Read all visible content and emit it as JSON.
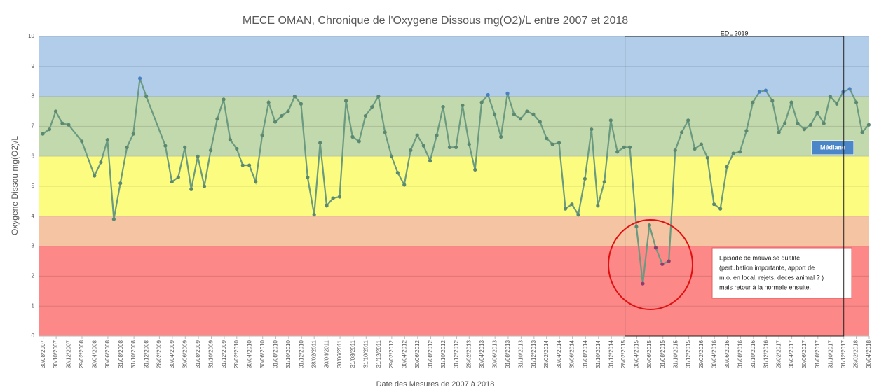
{
  "chart_data": {
    "type": "line",
    "title": "MECE OMAN, Chronique de l'Oxygene Dissous mg(O2)/L entre 2007 et 2018",
    "y_label": "Oxygene Dissou mg(O2)/L",
    "x_label": "Date des Mesures de 2007 à 2018",
    "color": "#6a9a80",
    "ylim": [
      0,
      10
    ],
    "yticks": [
      0,
      1,
      2,
      3,
      4,
      5,
      6,
      7,
      8,
      9,
      10
    ],
    "grid": true,
    "xlim": [
      "2007-08-08",
      "2018-04-30"
    ],
    "bands": [
      {
        "from": 8,
        "to": 10,
        "color": "#b1cde9"
      },
      {
        "from": 6,
        "to": 8,
        "color": "#c2d8ad"
      },
      {
        "from": 4,
        "to": 6,
        "color": "#fcfc80"
      },
      {
        "from": 3,
        "to": 4,
        "color": "#f5c4a3"
      },
      {
        "from": 0,
        "to": 3,
        "color": "#fc8888"
      }
    ],
    "highlight_box": {
      "label": "EDL 2019",
      "x": [
        "2015-03-05",
        "2017-12-31"
      ]
    },
    "legend_label": "Médiane",
    "annotation": [
      "Episode de mauvaise qualité",
      "(pertubation importante, apport de",
      "m.o. en local, rejets, deces animal ? )",
      "mais retour à la normale ensuite."
    ],
    "xticks": [
      {
        "value": "2007-08-30",
        "label": "30/08/2007"
      },
      {
        "value": "2007-10-30",
        "label": "30/10/2007"
      },
      {
        "value": "2007-12-30",
        "label": "30/12/2007"
      },
      {
        "value": "2008-02-29",
        "label": "29/02/2008"
      },
      {
        "value": "2008-04-30",
        "label": "30/04/2008"
      },
      {
        "value": "2008-06-30",
        "label": "30/06/2008"
      },
      {
        "value": "2008-08-31",
        "label": "31/08/2008"
      },
      {
        "value": "2008-10-31",
        "label": "31/10/2008"
      },
      {
        "value": "2008-12-31",
        "label": "31/12/2008"
      },
      {
        "value": "2009-02-28",
        "label": "28/02/2009"
      },
      {
        "value": "2009-04-30",
        "label": "30/04/2009"
      },
      {
        "value": "2009-06-30",
        "label": "30/06/2009"
      },
      {
        "value": "2009-08-31",
        "label": "31/08/2009"
      },
      {
        "value": "2009-10-31",
        "label": "31/10/2009"
      },
      {
        "value": "2009-12-31",
        "label": "31/12/2009"
      },
      {
        "value": "2010-02-28",
        "label": "28/02/2010"
      },
      {
        "value": "2010-04-30",
        "label": "30/04/2010"
      },
      {
        "value": "2010-06-30",
        "label": "30/06/2010"
      },
      {
        "value": "2010-08-31",
        "label": "31/08/2010"
      },
      {
        "value": "2010-10-31",
        "label": "31/10/2010"
      },
      {
        "value": "2010-12-31",
        "label": "31/12/2010"
      },
      {
        "value": "2011-02-28",
        "label": "28/02/2011"
      },
      {
        "value": "2011-04-30",
        "label": "30/04/2011"
      },
      {
        "value": "2011-06-30",
        "label": "30/06/2011"
      },
      {
        "value": "2011-08-31",
        "label": "31/08/2011"
      },
      {
        "value": "2011-10-31",
        "label": "31/10/2011"
      },
      {
        "value": "2011-12-31",
        "label": "31/12/2011"
      },
      {
        "value": "2012-02-29",
        "label": "29/02/2012"
      },
      {
        "value": "2012-04-30",
        "label": "30/04/2012"
      },
      {
        "value": "2012-06-30",
        "label": "30/06/2012"
      },
      {
        "value": "2012-08-31",
        "label": "31/08/2012"
      },
      {
        "value": "2012-10-31",
        "label": "31/10/2012"
      },
      {
        "value": "2012-12-31",
        "label": "31/12/2012"
      },
      {
        "value": "2013-02-28",
        "label": "28/02/2013"
      },
      {
        "value": "2013-04-30",
        "label": "30/04/2013"
      },
      {
        "value": "2013-06-30",
        "label": "30/06/2013"
      },
      {
        "value": "2013-08-31",
        "label": "31/08/2013"
      },
      {
        "value": "2013-10-31",
        "label": "31/10/2013"
      },
      {
        "value": "2013-12-31",
        "label": "31/12/2013"
      },
      {
        "value": "2014-02-28",
        "label": "28/02/2014"
      },
      {
        "value": "2014-04-30",
        "label": "30/04/2014"
      },
      {
        "value": "2014-06-30",
        "label": "30/06/2014"
      },
      {
        "value": "2014-08-31",
        "label": "31/08/2014"
      },
      {
        "value": "2014-10-31",
        "label": "31/10/2014"
      },
      {
        "value": "2014-12-31",
        "label": "31/12/2014"
      },
      {
        "value": "2015-02-28",
        "label": "28/02/2015"
      },
      {
        "value": "2015-04-30",
        "label": "30/04/2015"
      },
      {
        "value": "2015-06-30",
        "label": "30/06/2015"
      },
      {
        "value": "2015-08-31",
        "label": "31/08/2015"
      },
      {
        "value": "2015-10-31",
        "label": "31/10/2015"
      },
      {
        "value": "2015-12-31",
        "label": "31/12/2015"
      },
      {
        "value": "2016-02-29",
        "label": "29/02/2016"
      },
      {
        "value": "2016-04-30",
        "label": "30/04/2016"
      },
      {
        "value": "2016-06-30",
        "label": "30/06/2016"
      },
      {
        "value": "2016-08-31",
        "label": "31/08/2016"
      },
      {
        "value": "2016-10-31",
        "label": "31/10/2016"
      },
      {
        "value": "2016-12-31",
        "label": "31/12/2016"
      },
      {
        "value": "2017-02-28",
        "label": "28/02/2017"
      },
      {
        "value": "2017-04-30",
        "label": "30/04/2017"
      },
      {
        "value": "2017-06-30",
        "label": "30/06/2017"
      },
      {
        "value": "2017-08-31",
        "label": "31/08/2017"
      },
      {
        "value": "2017-10-31",
        "label": "31/10/2017"
      },
      {
        "value": "2017-12-31",
        "label": "31/12/2017"
      },
      {
        "value": "2018-02-28",
        "label": "28/02/2018"
      },
      {
        "value": "2018-04-30",
        "label": "30/04/2018"
      }
    ],
    "x": [
      "2007-08-28",
      "2007-09-28",
      "2007-10-28",
      "2007-11-28",
      "2007-12-28",
      "2008-02-28",
      "2008-04-28",
      "2008-05-28",
      "2008-06-28",
      "2008-07-28",
      "2008-08-28",
      "2008-09-28",
      "2008-10-28",
      "2008-11-28",
      "2008-12-28",
      "2009-03-28",
      "2009-04-28",
      "2009-05-28",
      "2009-06-28",
      "2009-07-28",
      "2009-08-28",
      "2009-09-28",
      "2009-10-28",
      "2009-11-28",
      "2009-12-28",
      "2010-01-28",
      "2010-02-28",
      "2010-03-28",
      "2010-04-28",
      "2010-05-28",
      "2010-06-28",
      "2010-07-28",
      "2010-08-28",
      "2010-09-28",
      "2010-10-28",
      "2010-11-28",
      "2010-12-28",
      "2011-01-28",
      "2011-02-28",
      "2011-03-28",
      "2011-04-28",
      "2011-05-28",
      "2011-06-28",
      "2011-07-28",
      "2011-08-28",
      "2011-09-28",
      "2011-10-28",
      "2011-11-28",
      "2011-12-28",
      "2012-01-28",
      "2012-02-28",
      "2012-03-28",
      "2012-04-28",
      "2012-05-28",
      "2012-06-28",
      "2012-07-28",
      "2012-08-28",
      "2012-09-28",
      "2012-10-28",
      "2012-11-28",
      "2012-12-28",
      "2013-01-28",
      "2013-02-28",
      "2013-03-28",
      "2013-04-28",
      "2013-05-28",
      "2013-06-28",
      "2013-07-28",
      "2013-08-28",
      "2013-09-28",
      "2013-10-28",
      "2013-11-28",
      "2013-12-28",
      "2014-01-28",
      "2014-02-28",
      "2014-03-28",
      "2014-04-28",
      "2014-05-28",
      "2014-06-28",
      "2014-07-28",
      "2014-08-28",
      "2014-09-28",
      "2014-10-28",
      "2014-11-28",
      "2014-12-28",
      "2015-01-28",
      "2015-02-28",
      "2015-03-28",
      "2015-04-28",
      "2015-05-28",
      "2015-06-28",
      "2015-07-28",
      "2015-08-28",
      "2015-09-28",
      "2015-10-28",
      "2015-11-28",
      "2015-12-28",
      "2016-01-28",
      "2016-02-28",
      "2016-03-28",
      "2016-04-28",
      "2016-05-28",
      "2016-06-28",
      "2016-07-28",
      "2016-08-28",
      "2016-09-28",
      "2016-10-28",
      "2016-11-28",
      "2016-12-28",
      "2017-01-28",
      "2017-02-28",
      "2017-03-28",
      "2017-04-28",
      "2017-05-28",
      "2017-06-28",
      "2017-07-28",
      "2017-08-28",
      "2017-09-28",
      "2017-10-28",
      "2017-11-28",
      "2017-12-28",
      "2018-01-28",
      "2018-02-28",
      "2018-03-28",
      "2018-04-28"
    ],
    "values": [
      6.75,
      6.9,
      7.5,
      7.1,
      7.05,
      6.5,
      5.35,
      5.8,
      6.55,
      3.9,
      5.1,
      6.3,
      6.75,
      8.6,
      8.0,
      6.35,
      5.15,
      5.3,
      6.3,
      4.9,
      6.0,
      5.0,
      6.2,
      7.25,
      7.9,
      6.55,
      6.25,
      5.7,
      5.7,
      5.15,
      6.7,
      7.8,
      7.15,
      7.35,
      7.5,
      8.0,
      7.75,
      5.3,
      4.05,
      6.45,
      4.35,
      4.6,
      4.65,
      7.85,
      6.65,
      6.5,
      7.35,
      7.65,
      8.0,
      6.8,
      6.0,
      5.45,
      5.05,
      6.2,
      6.7,
      6.35,
      5.85,
      6.7,
      7.65,
      6.3,
      6.3,
      7.7,
      6.4,
      5.55,
      7.8,
      8.05,
      7.4,
      6.65,
      8.1,
      7.4,
      7.25,
      7.5,
      7.4,
      7.15,
      6.6,
      6.4,
      6.45,
      4.25,
      4.4,
      4.05,
      5.25,
      6.9,
      4.35,
      5.15,
      7.2,
      6.15,
      6.3,
      6.3,
      3.65,
      1.75,
      3.7,
      2.95,
      2.4,
      2.5,
      6.2,
      6.8,
      7.2,
      6.25,
      6.4,
      5.95,
      4.4,
      4.25,
      5.65,
      6.1,
      6.15,
      6.85,
      7.8,
      8.15,
      8.2,
      7.85,
      6.8,
      7.1,
      7.8,
      7.1,
      6.9,
      7.05,
      7.45,
      7.1,
      8.0,
      7.75,
      8.15,
      8.25,
      7.8,
      6.8,
      7.05
    ]
  }
}
